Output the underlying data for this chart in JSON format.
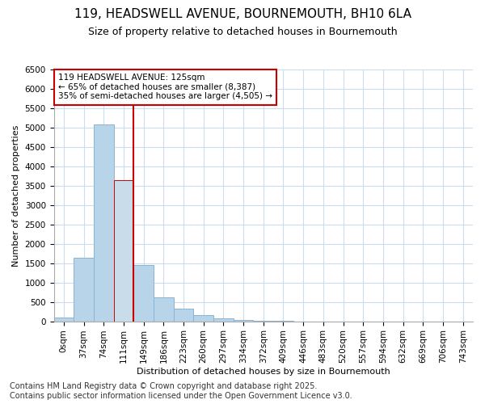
{
  "title": "119, HEADSWELL AVENUE, BOURNEMOUTH, BH10 6LA",
  "subtitle": "Size of property relative to detached houses in Bournemouth",
  "xlabel": "Distribution of detached houses by size in Bournemouth",
  "ylabel": "Number of detached properties",
  "categories": [
    "0sqm",
    "37sqm",
    "74sqm",
    "111sqm",
    "149sqm",
    "186sqm",
    "223sqm",
    "260sqm",
    "297sqm",
    "334sqm",
    "372sqm",
    "409sqm",
    "446sqm",
    "483sqm",
    "520sqm",
    "557sqm",
    "594sqm",
    "632sqm",
    "669sqm",
    "706sqm",
    "743sqm"
  ],
  "values": [
    100,
    1650,
    5100,
    3650,
    1450,
    620,
    320,
    155,
    80,
    40,
    10,
    5,
    0,
    0,
    0,
    0,
    0,
    0,
    0,
    0,
    0
  ],
  "bar_color": "#b8d4e8",
  "bar_edge_color": "#8ab4d4",
  "highlight_bar_index": 3,
  "highlight_color": "#c8dcea",
  "highlight_edge_color": "#cc0000",
  "vline_color": "#cc0000",
  "annotation_text": "119 HEADSWELL AVENUE: 125sqm\n← 65% of detached houses are smaller (8,387)\n35% of semi-detached houses are larger (4,505) →",
  "annotation_box_color": "#ffffff",
  "annotation_box_edge": "#cc0000",
  "ylim": [
    0,
    6500
  ],
  "yticks": [
    0,
    500,
    1000,
    1500,
    2000,
    2500,
    3000,
    3500,
    4000,
    4500,
    5000,
    5500,
    6000,
    6500
  ],
  "footer_text": "Contains HM Land Registry data © Crown copyright and database right 2025.\nContains public sector information licensed under the Open Government Licence v3.0.",
  "bg_color": "#ffffff",
  "plot_bg_color": "#ffffff",
  "grid_color": "#ccddee",
  "title_fontsize": 11,
  "subtitle_fontsize": 9,
  "label_fontsize": 8,
  "tick_fontsize": 7.5,
  "footer_fontsize": 7
}
